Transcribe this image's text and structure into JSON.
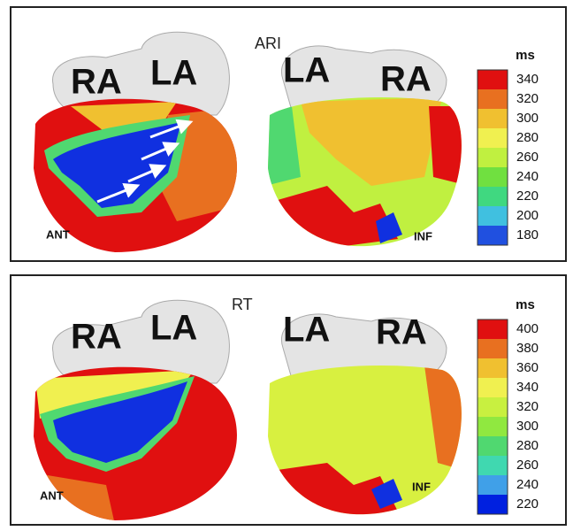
{
  "panels": [
    {
      "title": "ARI",
      "left_view": {
        "atria": [
          "RA",
          "LA"
        ],
        "view": "ANT"
      },
      "right_view": {
        "atria": [
          "LA",
          "RA"
        ],
        "view": "INF"
      },
      "colorbar": {
        "unit": "ms",
        "ticks": [
          340,
          320,
          300,
          280,
          260,
          240,
          220,
          200,
          180
        ],
        "colors": [
          "#e01010",
          "#e87020",
          "#f0c030",
          "#f0f050",
          "#c0f040",
          "#70e040",
          "#40d880",
          "#40c0e0",
          "#2050e0"
        ]
      }
    },
    {
      "title": "RT",
      "left_view": {
        "atria": [
          "RA",
          "LA"
        ],
        "view": "ANT"
      },
      "right_view": {
        "atria": [
          "LA",
          "RA"
        ],
        "view": "INF"
      },
      "colorbar": {
        "unit": "ms",
        "ticks": [
          400,
          380,
          360,
          340,
          320,
          300,
          280,
          260,
          240,
          220
        ],
        "colors": [
          "#e01010",
          "#e87020",
          "#f0c030",
          "#f0f050",
          "#c8f040",
          "#90e840",
          "#50d870",
          "#40d8b0",
          "#40a0e8",
          "#0020e0"
        ]
      }
    }
  ]
}
